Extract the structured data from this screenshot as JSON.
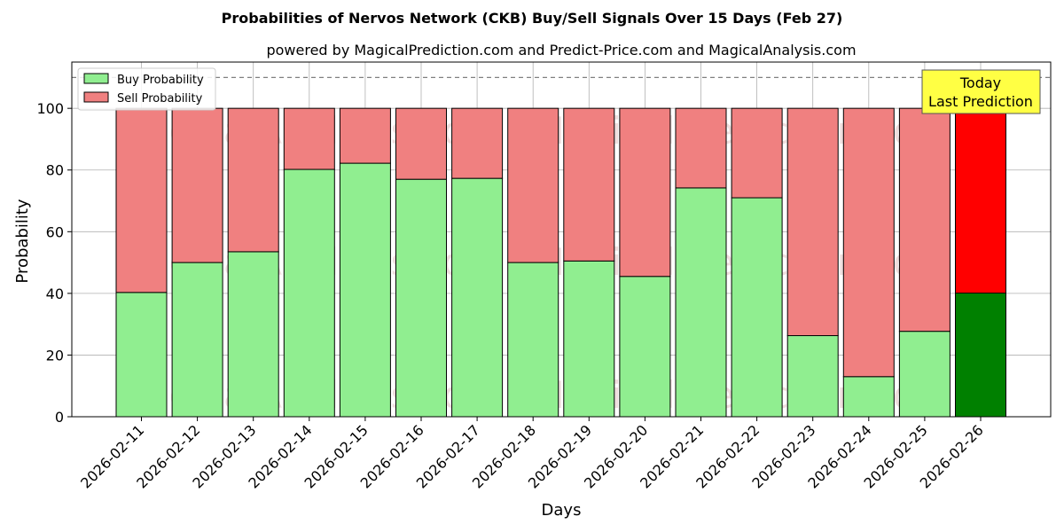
{
  "chart_data": {
    "type": "bar",
    "stacked": true,
    "title": "Probabilities of Nervos Network (CKB) Buy/Sell Signals Over 15 Days (Feb 27)",
    "subtitle": "powered by MagicalPrediction.com and Predict-Price.com and MagicalAnalysis.com",
    "xlabel": "Days",
    "ylabel": "Probability",
    "ylim": [
      0,
      115
    ],
    "yticks": [
      0,
      20,
      40,
      60,
      80,
      100
    ],
    "grid": true,
    "legend_position": "top-left",
    "reference_line": {
      "value": 110,
      "style": "dashed",
      "color": "#808080"
    },
    "categories": [
      "2026-02-11",
      "2026-02-12",
      "2026-02-13",
      "2026-02-14",
      "2026-02-15",
      "2026-02-16",
      "2026-02-17",
      "2026-02-18",
      "2026-02-19",
      "2026-02-20",
      "2026-02-21",
      "2026-02-22",
      "2026-02-23",
      "2026-02-24",
      "2026-02-25",
      "2026-02-26"
    ],
    "series": [
      {
        "name": "Buy Probability",
        "color": "#90ee90",
        "highlight_color": "#008000",
        "values": [
          40.3,
          50.0,
          53.5,
          80.2,
          82.2,
          77.0,
          77.3,
          50.0,
          50.5,
          45.5,
          74.2,
          71.0,
          26.3,
          13.0,
          27.7,
          40.1
        ]
      },
      {
        "name": "Sell Probability",
        "color": "#f08080",
        "highlight_color": "#ff0000",
        "values": [
          59.7,
          50.0,
          46.5,
          19.8,
          17.8,
          23.0,
          22.7,
          50.0,
          49.5,
          54.5,
          25.8,
          29.0,
          73.7,
          87.0,
          72.3,
          59.9
        ]
      }
    ],
    "highlight_index": 15,
    "annotation": {
      "lines": [
        "Today",
        "Last Prediction"
      ],
      "background": "#ffff44"
    },
    "watermarks": [
      "MagicalAnalysis.com",
      "MagicalPrediction.com"
    ]
  }
}
